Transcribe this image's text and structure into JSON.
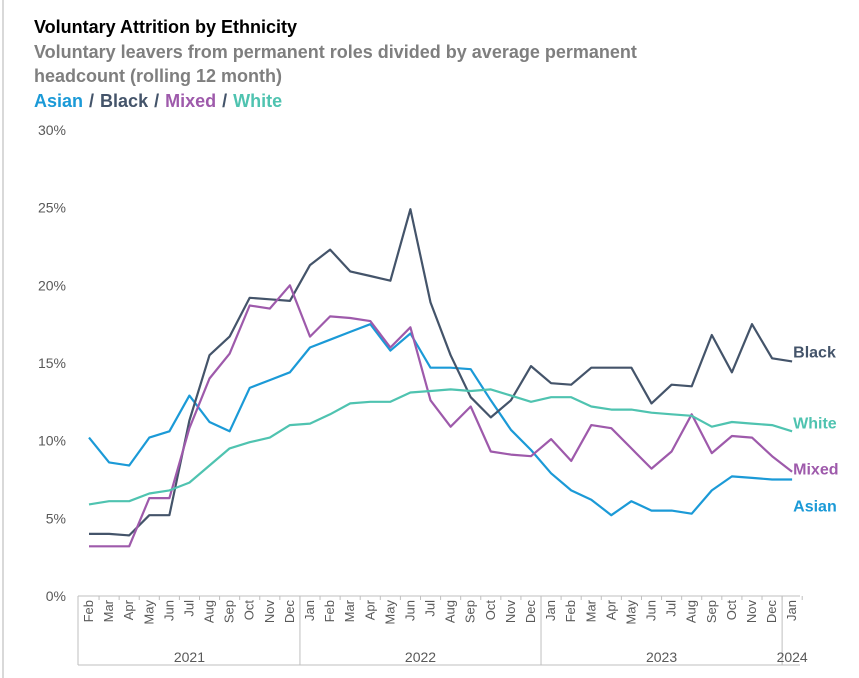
{
  "chart_data": {
    "type": "line",
    "title": "Voluntary Attrition by Ethnicity",
    "subtitle": [
      "Voluntary leavers from permanent roles divided by average permanent",
      "headcount (rolling 12 month)"
    ],
    "legend_separator": "/",
    "categories": [
      "Feb",
      "Mar",
      "Apr",
      "May",
      "Jun",
      "Jul",
      "Aug",
      "Sep",
      "Oct",
      "Nov",
      "Dec",
      "Jan",
      "Feb",
      "Mar",
      "Apr",
      "May",
      "Jun",
      "Jul",
      "Aug",
      "Sep",
      "Oct",
      "Nov",
      "Dec",
      "Jan",
      "Feb",
      "Mar",
      "Apr",
      "May",
      "Jun",
      "Jul",
      "Aug",
      "Sep",
      "Oct",
      "Nov",
      "Dec",
      "Jan"
    ],
    "category_groups": [
      {
        "label": "2021",
        "count": 11
      },
      {
        "label": "2022",
        "count": 12
      },
      {
        "label": "2023",
        "count": 12
      },
      {
        "label": "2024",
        "count": 1
      }
    ],
    "series": [
      {
        "name": "Asian",
        "color": "#1b9ad7",
        "values": [
          10.2,
          8.6,
          8.4,
          10.2,
          10.6,
          12.9,
          11.2,
          10.6,
          13.4,
          13.9,
          14.4,
          16.0,
          16.5,
          17.0,
          17.5,
          15.8,
          16.9,
          14.7,
          14.7,
          14.6,
          12.6,
          10.7,
          9.4,
          7.9,
          6.8,
          6.2,
          5.2,
          6.1,
          5.5,
          5.5,
          5.3,
          6.8,
          7.7,
          7.6,
          7.5,
          7.5
        ]
      },
      {
        "name": "Black",
        "color": "#44546a",
        "values": [
          4.0,
          4.0,
          3.9,
          5.2,
          5.2,
          11.3,
          15.5,
          16.7,
          19.2,
          19.1,
          19.0,
          21.3,
          22.3,
          20.9,
          20.6,
          20.3,
          24.9,
          18.9,
          15.5,
          12.8,
          11.5,
          12.6,
          14.8,
          13.7,
          13.6,
          14.7,
          14.7,
          14.7,
          12.4,
          13.6,
          13.5,
          16.8,
          14.4,
          17.5,
          15.3,
          15.1
        ]
      },
      {
        "name": "Mixed",
        "color": "#9e5aab",
        "values": [
          3.2,
          3.2,
          3.2,
          6.3,
          6.3,
          10.8,
          14.0,
          15.6,
          18.7,
          18.5,
          20.0,
          16.7,
          18.0,
          17.9,
          17.7,
          16.0,
          17.3,
          12.6,
          10.9,
          12.2,
          9.3,
          9.1,
          9.0,
          10.1,
          8.7,
          11.0,
          10.8,
          9.5,
          8.2,
          9.3,
          11.7,
          9.2,
          10.3,
          10.2,
          9.0,
          8.0
        ]
      },
      {
        "name": "White",
        "color": "#4fc3b0",
        "values": [
          5.9,
          6.1,
          6.1,
          6.6,
          6.8,
          7.3,
          8.4,
          9.5,
          9.9,
          10.2,
          11.0,
          11.1,
          11.7,
          12.4,
          12.5,
          12.5,
          13.1,
          13.2,
          13.3,
          13.2,
          13.3,
          12.9,
          12.5,
          12.8,
          12.8,
          12.2,
          12.0,
          12.0,
          11.8,
          11.7,
          11.6,
          10.9,
          11.2,
          11.1,
          11.0,
          10.6
        ]
      }
    ],
    "ylim": [
      0,
      30
    ],
    "yticks": [
      {
        "value": 0,
        "label": "0%"
      },
      {
        "value": 5,
        "label": "5%"
      },
      {
        "value": 10,
        "label": "10%"
      },
      {
        "value": 15,
        "label": "15%"
      },
      {
        "value": 20,
        "label": "20%"
      },
      {
        "value": 25,
        "label": "25%"
      },
      {
        "value": 30,
        "label": "30%"
      }
    ]
  }
}
